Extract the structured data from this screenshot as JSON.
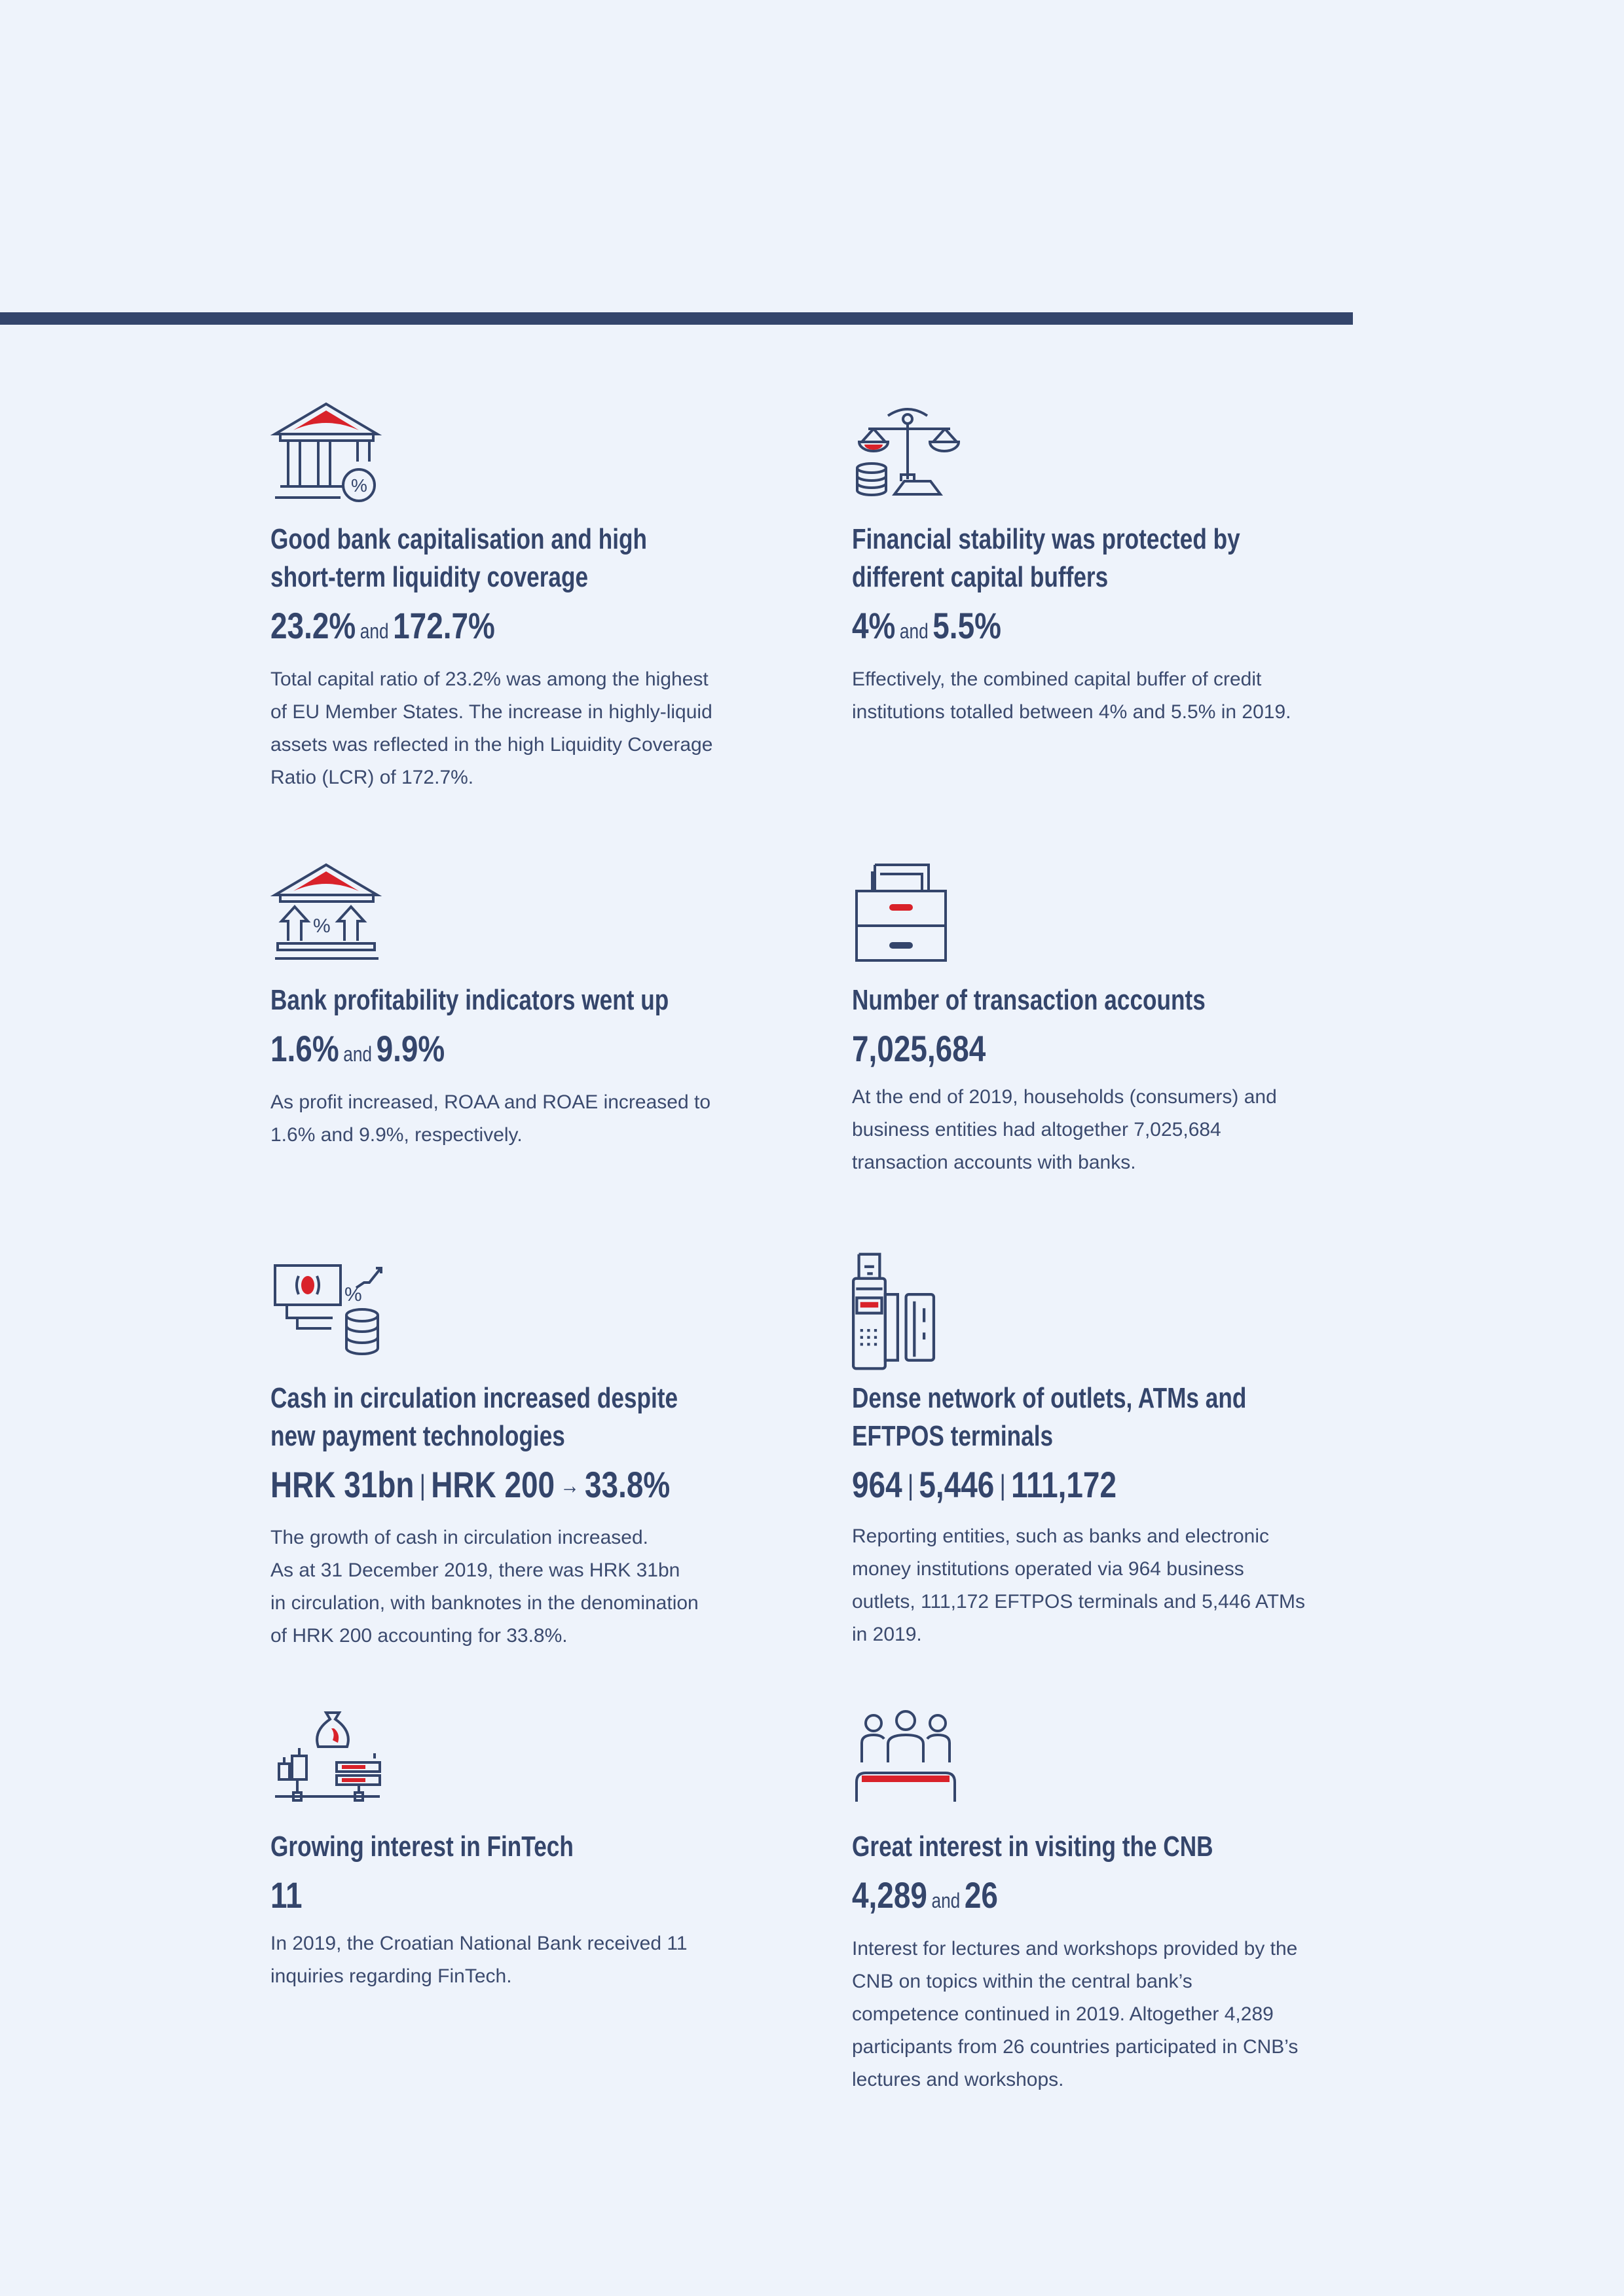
{
  "colors": {
    "primary": "#34456b",
    "accent": "#d9222a",
    "background": "#eef3fb"
  },
  "cards": [
    {
      "icon": "bank-percent-icon",
      "title": [
        "Good bank capitalisation and high",
        "short-term liquidity coverage"
      ],
      "stats": {
        "a": "23.2%",
        "and": "and",
        "b": "172.7%"
      },
      "body": [
        "Total capital ratio of 23.2% was among the highest",
        "of EU Member States. The increase in highly-liquid",
        "assets was reflected in the high Liquidity Coverage",
        "Ratio (LCR) of 172.7%."
      ]
    },
    {
      "icon": "scales-coins-icon",
      "title": [
        "Financial stability was protected by",
        "different capital buffers"
      ],
      "stats": {
        "a": "4%",
        "and": "and",
        "b": "5.5%"
      },
      "body": [
        "Effectively, the combined capital buffer of credit",
        "institutions totalled between 4% and 5.5% in 2019."
      ]
    },
    {
      "icon": "bank-arrows-up-icon",
      "title": [
        "Bank profitability indicators went up"
      ],
      "stats": {
        "a": "1.6%",
        "and": "and",
        "b": "9.9%"
      },
      "body": [
        "As profit increased, ROAA and ROAE increased to",
        "1.6% and 9.9%, respectively."
      ]
    },
    {
      "icon": "file-cabinet-icon",
      "title": [
        "Number of transaction accounts"
      ],
      "stats": {
        "a": "7,025,684"
      },
      "body": [
        "At the end of 2019, households (consumers) and",
        "business entities had altogether 7,025,684",
        "transaction accounts with banks."
      ]
    },
    {
      "icon": "banknote-coins-icon",
      "title": [
        "Cash in circulation increased despite",
        "new payment technologies"
      ],
      "stats": {
        "a": "HRK 31bn",
        "sep": "|",
        "b": "HRK 200",
        "arrow": "→",
        "c": "33.8%"
      },
      "body": [
        "The growth of cash in circulation increased.",
        "As at 31 December 2019, there was HRK 31bn",
        "in circulation, with banknotes in the denomination",
        "of HRK 200 accounting for 33.8%."
      ]
    },
    {
      "icon": "pos-terminal-card-icon",
      "title": [
        "Dense network of outlets, ATMs and",
        "EFTPOS terminals"
      ],
      "stats": {
        "a": "964",
        "sep": "|",
        "b": "5,446",
        "c": "111,172"
      },
      "body": [
        "Reporting entities, such as banks and electronic",
        "money institutions operated via 964 business",
        "outlets, 111,172 EFTPOS terminals and 5,446 ATMs",
        "in 2019."
      ]
    },
    {
      "icon": "fintech-moneybag-icon",
      "title": [
        "Growing interest in FinTech"
      ],
      "stats": {
        "a": "11"
      },
      "body": [
        "In 2019, the Croatian National Bank received 11",
        "inquiries regarding FinTech."
      ]
    },
    {
      "icon": "people-lecture-icon",
      "title": [
        "Great interest in visiting the CNB"
      ],
      "stats": {
        "a": "4,289",
        "and": "and",
        "b": "26"
      },
      "body": [
        "Interest for lectures and workshops provided by the",
        "CNB on topics within the central bank’s",
        "competence continued in 2019. Altogether 4,289",
        "participants from 26 countries participated in CNB’s",
        "lectures and workshops."
      ]
    }
  ]
}
